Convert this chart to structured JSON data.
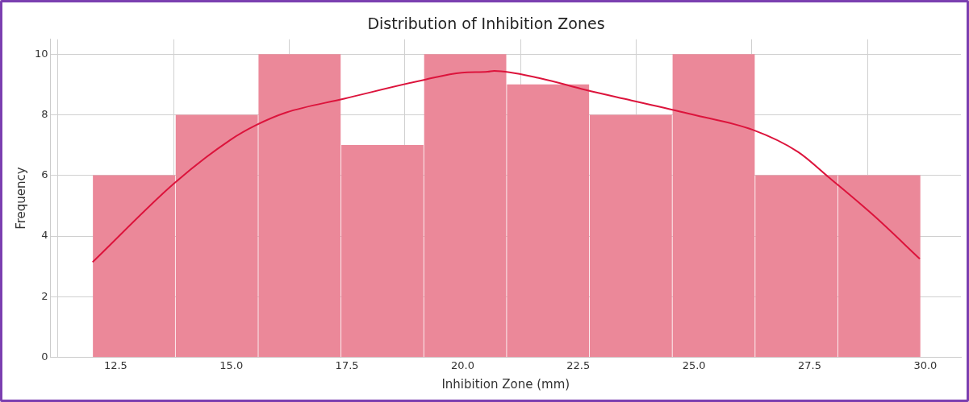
{
  "chart_data": {
    "type": "histogram",
    "title": "Distribution of Inhibition Zones",
    "xlabel": "Inhibition Zone (mm)",
    "ylabel": "Frequency",
    "bins": [
      12.0,
      13.79,
      15.58,
      17.37,
      19.16,
      20.95,
      22.74,
      24.53,
      26.32,
      28.11,
      29.9
    ],
    "values": [
      6,
      8,
      10,
      7,
      10,
      9,
      8,
      10,
      6,
      6
    ],
    "color": "#eb8899",
    "series": [
      {
        "type": "line",
        "color": "#dc143c",
        "x": [
          12.0,
          13.77,
          14.98,
          15.54,
          16.18,
          17.44,
          19.16,
          19.98,
          20.54,
          20.68,
          21.68,
          22.65,
          23.65,
          24.96,
          26.27,
          27.25,
          27.9,
          28.9,
          29.88
        ],
        "values": [
          3.14,
          5.75,
          7.18,
          7.67,
          8.08,
          8.54,
          9.16,
          9.4,
          9.43,
          9.46,
          9.21,
          8.83,
          8.48,
          8.02,
          7.51,
          6.78,
          5.96,
          4.66,
          3.25
        ]
      }
    ],
    "xlim": [
      11.09,
      30.77
    ],
    "ylim": [
      0,
      10.5
    ],
    "xticks": [
      12.5,
      {
        "value": 15,
        "label": "15.0"
      },
      17.5,
      {
        "value": 20,
        "label": "20.0"
      },
      22.5,
      {
        "value": 25,
        "label": "25.0"
      },
      27.5,
      {
        "value": 30,
        "label": "30.0"
      }
    ],
    "yticks": [
      0,
      2,
      4,
      6,
      8,
      10
    ],
    "grid": true,
    "legend": false,
    "marker": "none"
  }
}
